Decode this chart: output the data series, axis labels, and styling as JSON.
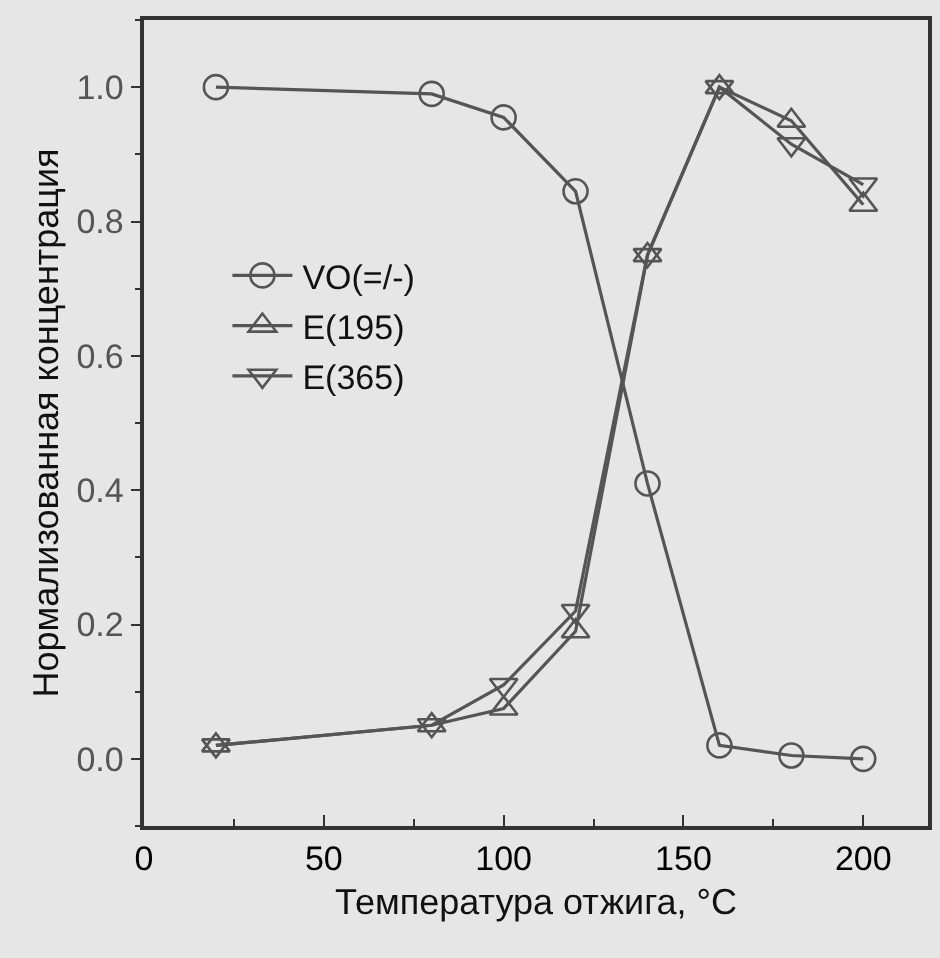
{
  "chart_data": {
    "type": "line",
    "xlabel": "Температура отжига, °C",
    "ylabel": "Нормализованная концентрация",
    "x": [
      20,
      80,
      100,
      120,
      140,
      160,
      180,
      200
    ],
    "series": [
      {
        "name": "VO(=/-)",
        "color": "#555555",
        "marker": "circle",
        "values": [
          1.0,
          0.99,
          0.955,
          0.845,
          0.41,
          0.02,
          0.005,
          0.0
        ]
      },
      {
        "name": "E(195)",
        "color": "#555555",
        "marker": "triangle",
        "values": [
          0.02,
          0.05,
          0.075,
          0.19,
          0.75,
          1.0,
          0.95,
          0.825
        ]
      },
      {
        "name": "E(365)",
        "color": "#555555",
        "marker": "triangle-down",
        "values": [
          0.02,
          0.05,
          0.11,
          0.22,
          0.75,
          1.0,
          0.915,
          0.855
        ]
      }
    ],
    "xlim": [
      0,
      218
    ],
    "xticks": [
      0,
      50,
      100,
      150,
      200
    ],
    "ylim": [
      -0.1,
      1.1
    ],
    "yticks": [
      {
        "value": 0,
        "label": "0.0"
      },
      0.2,
      0.4,
      0.6,
      0.8,
      {
        "value": 1,
        "label": "1.0"
      }
    ],
    "grid": false,
    "legend": "left",
    "line_style": "solid"
  }
}
